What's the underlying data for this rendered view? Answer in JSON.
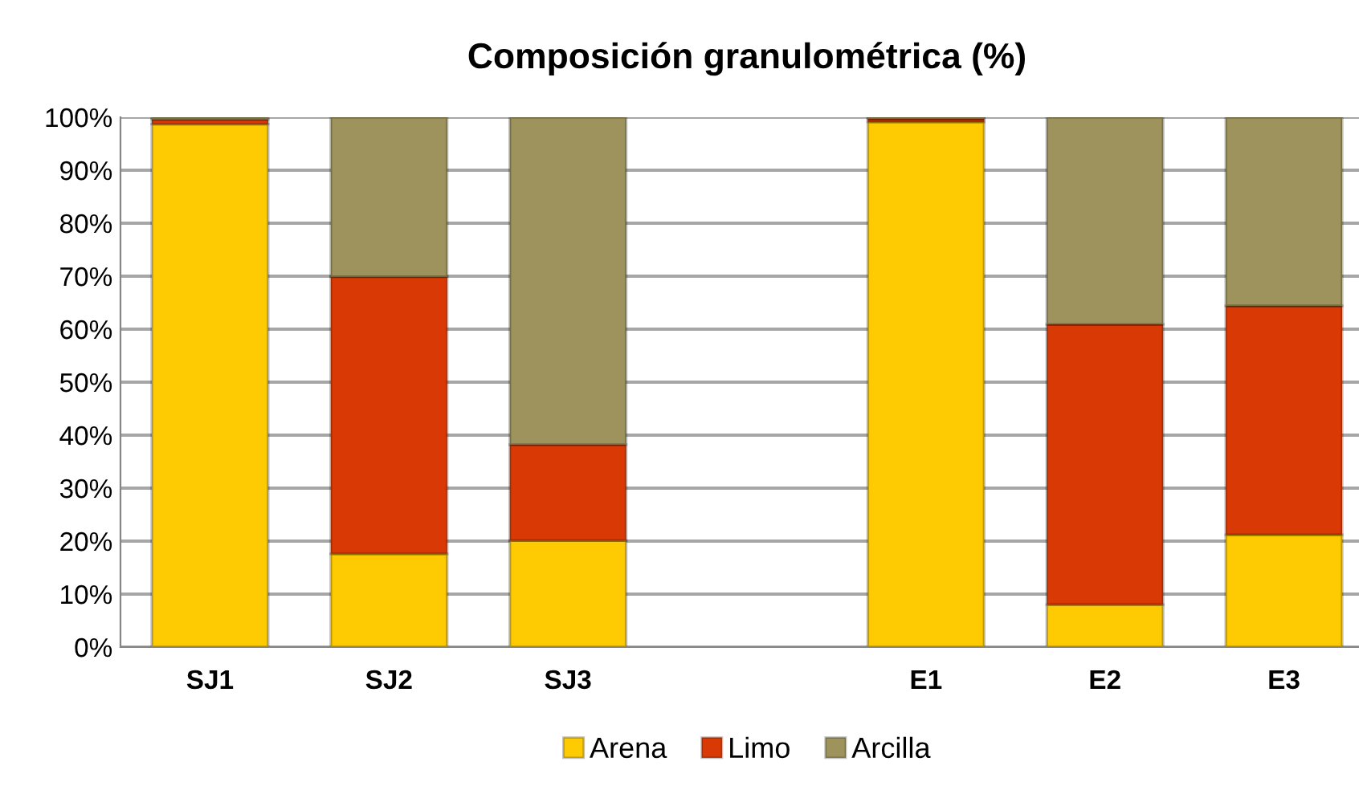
{
  "chart_data": {
    "type": "bar",
    "title": "Composición granulométrica (%)",
    "stacked": true,
    "categories": [
      "SJ1",
      "SJ2",
      "SJ3",
      null,
      "E1",
      "E2",
      "E3"
    ],
    "series": [
      {
        "name": "Arena",
        "color": "#fecb02",
        "values": [
          98.7,
          17.6,
          20.1,
          null,
          99.1,
          8.0,
          21.2
        ]
      },
      {
        "name": "Limo",
        "color": "#d93a05",
        "values": [
          0.9,
          52.3,
          18.1,
          null,
          0.6,
          52.9,
          43.2
        ]
      },
      {
        "name": "Arcilla",
        "color": "#9e935c",
        "values": [
          0.4,
          30.1,
          61.8,
          null,
          0.3,
          39.1,
          35.6
        ]
      }
    ],
    "ylim": [
      0,
      100
    ],
    "yticks": [
      {
        "value": 0,
        "label": "0%"
      },
      {
        "value": 10,
        "label": "10%"
      },
      {
        "value": 20,
        "label": "20%"
      },
      {
        "value": 30,
        "label": "30%"
      },
      {
        "value": 40,
        "label": "40%"
      },
      {
        "value": 50,
        "label": "50%"
      },
      {
        "value": 60,
        "label": "60%"
      },
      {
        "value": 70,
        "label": "70%"
      },
      {
        "value": 80,
        "label": "80%"
      },
      {
        "value": 90,
        "label": "90%"
      },
      {
        "value": 100,
        "label": "100%"
      }
    ],
    "grid": "y",
    "legend": "bottom"
  }
}
